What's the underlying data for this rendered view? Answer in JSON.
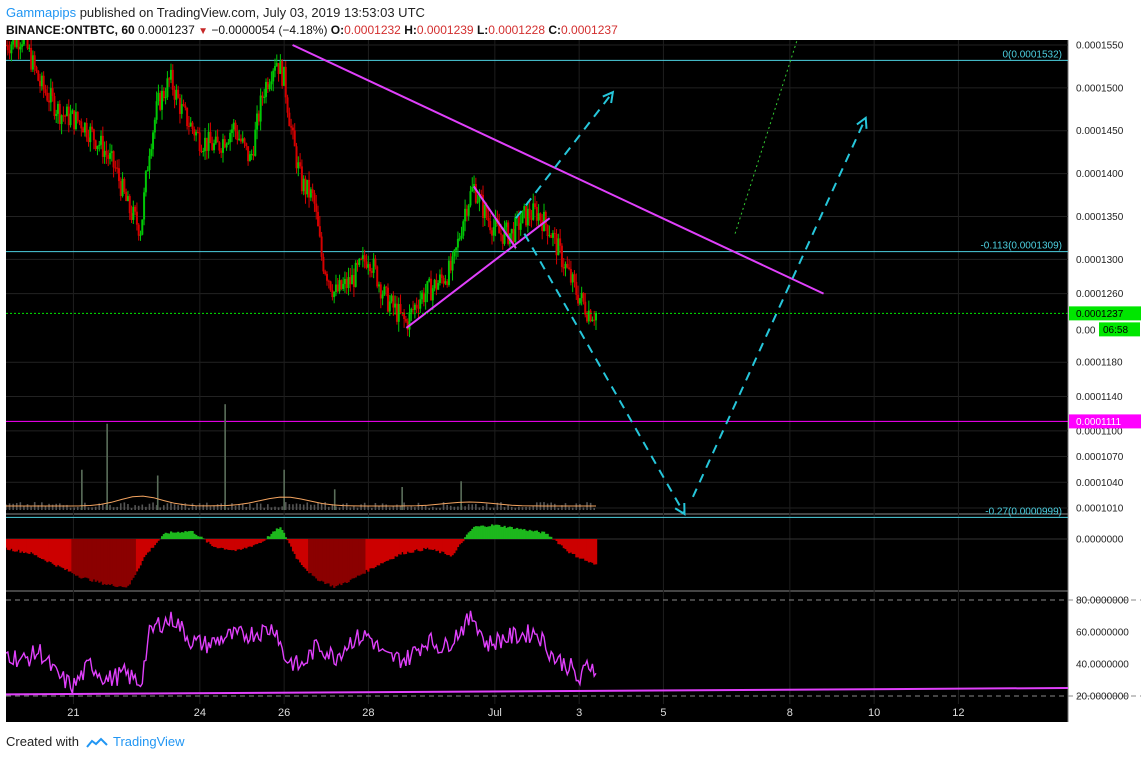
{
  "header": {
    "author": "Gammapips",
    "published_text": "published on TradingView.com, July 03, 2019 13:53:03 UTC",
    "symbol": "BINANCE:ONTBTC, 60",
    "last": "0.0001237",
    "change": "−0.0000054 (−4.18%)",
    "o_label": "O:",
    "o_value": "0.0001232",
    "h_label": "H:",
    "h_value": "0.0001239",
    "l_label": "L:",
    "l_value": "0.0001228",
    "c_label": "C:",
    "c_value": "0.0001237"
  },
  "footer": {
    "created_with": "Created with",
    "brand": "TradingView"
  },
  "colors": {
    "background": "#000000",
    "bull": "#00c805",
    "bear": "#d50000",
    "trendline": "#e040fb",
    "fib": "#4dd0e1",
    "projection": "#26c6da",
    "price_tag": "#00e600",
    "support_tag": "#ff00ff",
    "rsi": "#e040fb",
    "volume_ma": "#f4a460"
  },
  "chart_data": {
    "type": "candlestick",
    "symbol": "BINANCE:ONTBTC",
    "interval": "60",
    "x_ticks": [
      {
        "label": "21",
        "day": 21
      },
      {
        "label": "24",
        "day": 24
      },
      {
        "label": "26",
        "day": 26
      },
      {
        "label": "28",
        "day": 28
      },
      {
        "label": "Jul",
        "day": 31
      },
      {
        "label": "3",
        "day": 33
      },
      {
        "label": "5",
        "day": 35
      },
      {
        "label": "8",
        "day": 38
      },
      {
        "label": "10",
        "day": 40
      },
      {
        "label": "12",
        "day": 42
      }
    ],
    "x_range_days": [
      19.4,
      44.6
    ],
    "price_axis": {
      "ylim": [
        0.000101,
        0.000155
      ],
      "ticks": [
        "0.0001550",
        "0.0001500",
        "0.0001450",
        "0.0001400",
        "0.0001350",
        "0.0001300",
        "0.0001260",
        "0.0001180",
        "0.0001140",
        "0.0001100",
        "0.0001070",
        "0.0001040",
        "0.0001010"
      ],
      "tick_values": [
        0.000155,
        0.00015,
        0.000145,
        0.00014,
        0.000135,
        0.00013,
        0.000126,
        0.000118,
        0.000114,
        0.00011,
        0.000107,
        0.000104,
        0.000101
      ],
      "hidden_tick_label": "0.00"
    },
    "price_path": [
      [
        19.4,
        0.000155
      ],
      [
        19.8,
        0.000156
      ],
      [
        20.2,
        0.0001505
      ],
      [
        20.7,
        0.000147
      ],
      [
        21.2,
        0.000146
      ],
      [
        21.7,
        0.000143
      ],
      [
        22.0,
        0.0001405
      ],
      [
        22.3,
        0.000136
      ],
      [
        22.6,
        0.0001335
      ],
      [
        22.8,
        0.000143
      ],
      [
        23.0,
        0.000148
      ],
      [
        23.3,
        0.000151
      ],
      [
        23.6,
        0.000147
      ],
      [
        24.0,
        0.000144
      ],
      [
        24.4,
        0.000143
      ],
      [
        24.8,
        0.0001455
      ],
      [
        25.2,
        0.0001415
      ],
      [
        25.5,
        0.0001495
      ],
      [
        25.8,
        0.0001535
      ],
      [
        26.0,
        0.000151
      ],
      [
        26.2,
        0.000144
      ],
      [
        26.4,
        0.000139
      ],
      [
        26.7,
        0.000137
      ],
      [
        26.9,
        0.00013
      ],
      [
        27.2,
        0.000126
      ],
      [
        27.6,
        0.0001275
      ],
      [
        28.0,
        0.0001305
      ],
      [
        28.4,
        0.0001255
      ],
      [
        28.9,
        0.0001225
      ],
      [
        29.2,
        0.0001255
      ],
      [
        29.6,
        0.000127
      ],
      [
        30.0,
        0.000129
      ],
      [
        30.3,
        0.000136
      ],
      [
        30.5,
        0.0001385
      ],
      [
        30.8,
        0.000135
      ],
      [
        31.1,
        0.000133
      ],
      [
        31.4,
        0.000133
      ],
      [
        31.7,
        0.000135
      ],
      [
        32.0,
        0.0001355
      ],
      [
        32.3,
        0.0001335
      ],
      [
        32.6,
        0.00013
      ],
      [
        32.9,
        0.0001265
      ],
      [
        33.2,
        0.000124
      ],
      [
        33.4,
        0.0001237
      ]
    ],
    "last_price": "0.0001237",
    "countdown": "06:58",
    "support_level": {
      "value": 0.0001111,
      "label": "0.0001111"
    },
    "fib_levels": [
      {
        "label": "0(0.0001532)",
        "value": 0.0001532
      },
      {
        "label": "-0.113(0.0001309)",
        "value": 0.0001309
      },
      {
        "label": "-0.27(0.0000999)",
        "value": 9.99e-05
      }
    ],
    "trendlines": [
      {
        "name": "descending",
        "from": [
          26.2,
          0.000155
        ],
        "to": [
          38.8,
          0.000126
        ]
      },
      {
        "name": "wedge-upper",
        "from": [
          30.5,
          0.0001385
        ],
        "to": [
          31.5,
          0.0001313
        ]
      },
      {
        "name": "wedge-lower",
        "from": [
          28.9,
          0.000122
        ],
        "to": [
          32.3,
          0.0001348
        ]
      }
    ],
    "projections": [
      {
        "name": "up-short",
        "from": [
          31.5,
          0.0001348
        ],
        "to": [
          33.8,
          0.0001495
        ],
        "style": "dashed"
      },
      {
        "name": "down",
        "from": [
          31.7,
          0.000133
        ],
        "to": [
          35.5,
          0.0001003
        ],
        "style": "dashed"
      },
      {
        "name": "up-long",
        "from": [
          35.7,
          0.0001023
        ],
        "to": [
          39.8,
          0.0001465
        ],
        "style": "dashed"
      },
      {
        "name": "green-dotted",
        "from": [
          36.7,
          0.000133
        ],
        "to": [
          38.2,
          0.000156
        ],
        "style": "dotted"
      }
    ],
    "macd": {
      "axis_label": "0.0000000",
      "histogram": [
        [
          19.4,
          -0.2
        ],
        [
          20.0,
          -0.3
        ],
        [
          20.6,
          -0.55
        ],
        [
          21.2,
          -0.8
        ],
        [
          21.8,
          -0.95
        ],
        [
          22.3,
          -1.0
        ],
        [
          22.7,
          -0.35
        ],
        [
          23.2,
          0.15
        ],
        [
          23.8,
          0.2
        ],
        [
          24.3,
          -0.15
        ],
        [
          24.9,
          -0.25
        ],
        [
          25.5,
          -0.05
        ],
        [
          25.9,
          0.3
        ],
        [
          26.3,
          -0.4
        ],
        [
          26.7,
          -0.8
        ],
        [
          27.2,
          -1.0
        ],
        [
          27.6,
          -0.85
        ],
        [
          28.2,
          -0.55
        ],
        [
          28.8,
          -0.3
        ],
        [
          29.4,
          -0.2
        ],
        [
          30.0,
          -0.35
        ],
        [
          30.5,
          0.3
        ],
        [
          31.0,
          0.35
        ],
        [
          31.6,
          0.25
        ],
        [
          32.2,
          0.15
        ],
        [
          32.8,
          -0.3
        ],
        [
          33.4,
          -0.55
        ]
      ]
    },
    "rsi": {
      "ylim": [
        15,
        85
      ],
      "ticks": [
        "80.0000000",
        "60.0000000",
        "40.0000000",
        "20.0000000"
      ],
      "tick_values": [
        80,
        60,
        40,
        20
      ],
      "bands": [
        80,
        20
      ],
      "values": [
        [
          19.4,
          47
        ],
        [
          19.8,
          42
        ],
        [
          20.2,
          48
        ],
        [
          20.6,
          33
        ],
        [
          21.0,
          26
        ],
        [
          21.4,
          40
        ],
        [
          21.8,
          30
        ],
        [
          22.2,
          34
        ],
        [
          22.6,
          28
        ],
        [
          22.8,
          58
        ],
        [
          23.0,
          65
        ],
        [
          23.4,
          68
        ],
        [
          23.8,
          54
        ],
        [
          24.2,
          52
        ],
        [
          24.6,
          57
        ],
        [
          25.0,
          58
        ],
        [
          25.4,
          60
        ],
        [
          25.8,
          63
        ],
        [
          26.0,
          44
        ],
        [
          26.4,
          38
        ],
        [
          26.8,
          52
        ],
        [
          27.2,
          44
        ],
        [
          27.6,
          55
        ],
        [
          28.0,
          58
        ],
        [
          28.4,
          44
        ],
        [
          28.9,
          43
        ],
        [
          29.4,
          55
        ],
        [
          29.8,
          50
        ],
        [
          30.2,
          62
        ],
        [
          30.5,
          70
        ],
        [
          30.8,
          52
        ],
        [
          31.2,
          56
        ],
        [
          31.6,
          58
        ],
        [
          32.0,
          60
        ],
        [
          32.4,
          44
        ],
        [
          32.8,
          38
        ],
        [
          33.0,
          28
        ],
        [
          33.2,
          40
        ],
        [
          33.4,
          38
        ]
      ],
      "trendline": {
        "from": [
          19.4,
          21
        ],
        "to": [
          44.6,
          25
        ]
      }
    },
    "volume": {
      "spikes": [
        [
          21.8,
          0.75
        ],
        [
          24.6,
          0.92
        ],
        [
          21.2,
          0.35
        ],
        [
          23.0,
          0.3
        ],
        [
          26.0,
          0.35
        ],
        [
          30.2,
          0.25
        ],
        [
          28.8,
          0.2
        ],
        [
          27.2,
          0.18
        ]
      ]
    }
  }
}
